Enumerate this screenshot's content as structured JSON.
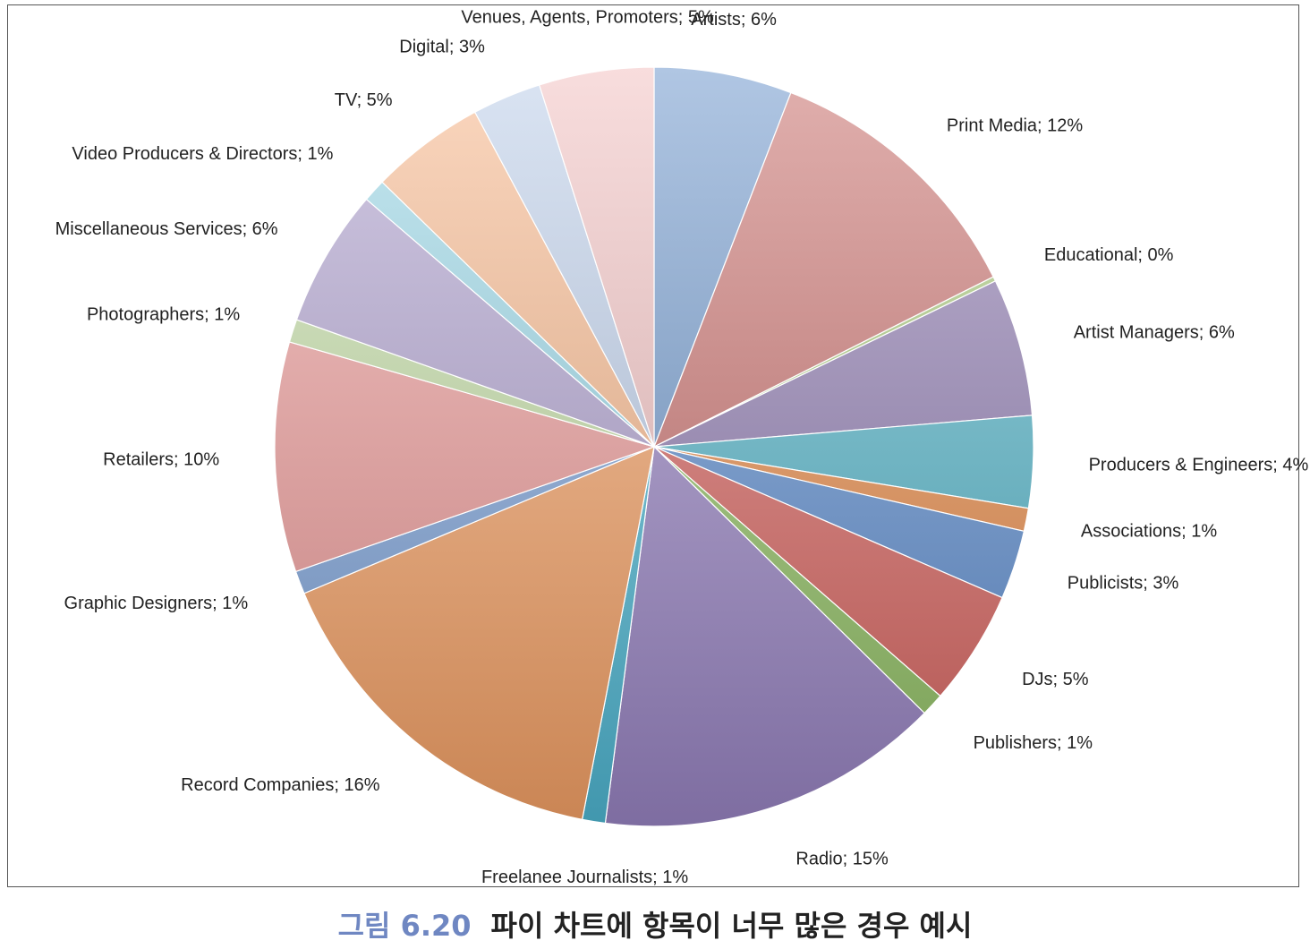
{
  "chart_data": {
    "type": "pie",
    "title": "",
    "start_angle_deg": 0,
    "direction": "clockwise",
    "slices": [
      {
        "label": "Artists; 6%",
        "value": 6,
        "color": "#6f98cc"
      },
      {
        "label": "Print Media; 12%",
        "value": 12,
        "color": "#c96f6c"
      },
      {
        "label": "Educational; 0%",
        "value": 0.2,
        "color": "#a7c978"
      },
      {
        "label": "Artist Managers; 6%",
        "value": 6,
        "color": "#8e7ab0"
      },
      {
        "label": "Producers & Engineers; 4%",
        "value": 4,
        "color": "#52b4c9"
      },
      {
        "label": "Associations; 1%",
        "value": 1,
        "color": "#e98b48"
      },
      {
        "label": "Publicists; 3%",
        "value": 3,
        "color": "#5e8ed0"
      },
      {
        "label": "DJs; 5%",
        "value": 5,
        "color": "#d96560"
      },
      {
        "label": "Publishers; 1%",
        "value": 1,
        "color": "#92c265"
      },
      {
        "label": "Radio; 15%",
        "value": 15,
        "color": "#9a85c4"
      },
      {
        "label": "Freelanee Journalists; 1%",
        "value": 1,
        "color": "#4fb8d4"
      },
      {
        "label": "Record Companies; 16%",
        "value": 16,
        "color": "#f6a266"
      },
      {
        "label": "Graphic Designers; 1%",
        "value": 1,
        "color": "#7ea4da"
      },
      {
        "label": "Retailers; 10%",
        "value": 10,
        "color": "#ec9a98"
      },
      {
        "label": "Photographers; 1%",
        "value": 1,
        "color": "#c2dca3"
      },
      {
        "label": "Miscellaneous Services; 6%",
        "value": 6,
        "color": "#ad9fcd"
      },
      {
        "label": "Video Producers & Directors; 1%",
        "value": 1,
        "color": "#96d6e6"
      },
      {
        "label": "TV; 5%",
        "value": 5,
        "color": "#f7b78a"
      },
      {
        "label": "Digital; 3%",
        "value": 3,
        "color": "#bccde9"
      },
      {
        "label": "Venues, Agents, Promoters; 5%",
        "value": 5,
        "color": "#f2c1c1"
      }
    ]
  },
  "caption": {
    "number": "그림 6.20",
    "text": "파이 차트에 항목이 너무 많은 경우 예시"
  }
}
